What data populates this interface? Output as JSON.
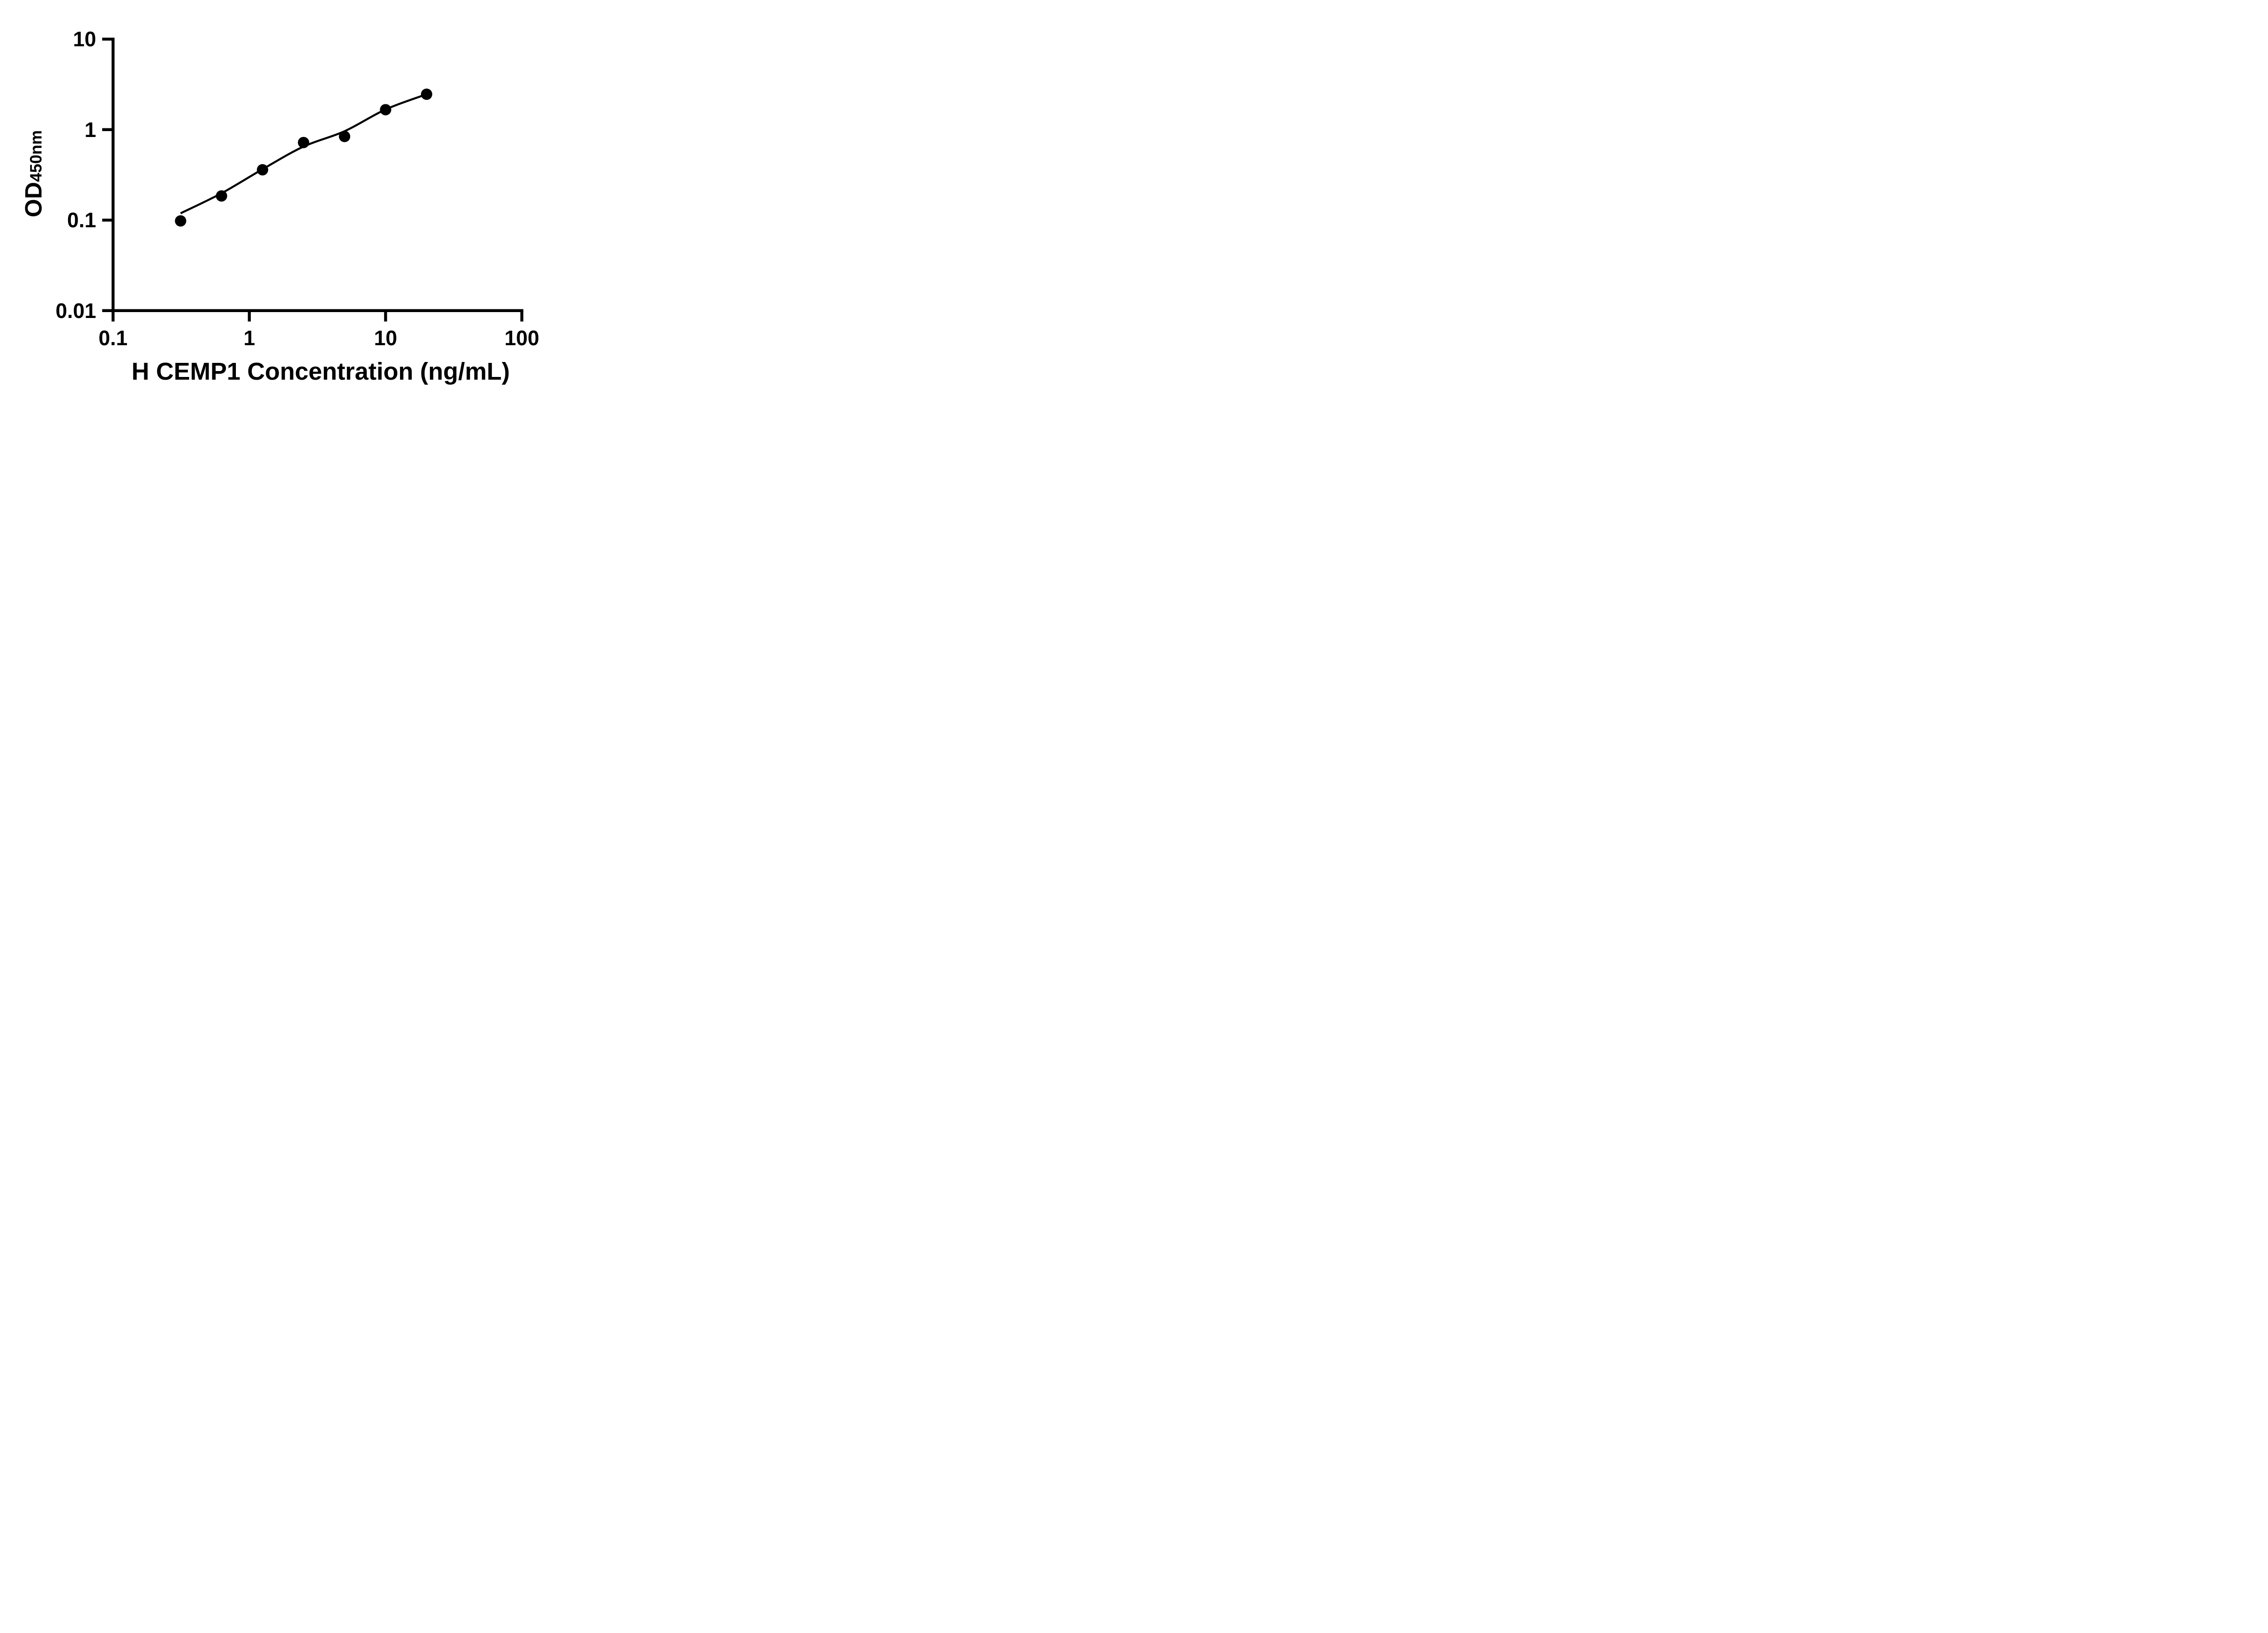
{
  "figure": {
    "background": "#ffffff",
    "ink_color": "#000000"
  },
  "chart_data": {
    "type": "scatter",
    "title": "",
    "xlabel": "H CEMP1 Concentration (ng/mL)",
    "ylabel_main": "OD",
    "ylabel_sub": "450nm",
    "x_scale": "log10",
    "y_scale": "log10",
    "xlim": [
      0.1,
      100
    ],
    "ylim": [
      0.01,
      10
    ],
    "grid": false,
    "legend": "none",
    "x_ticks": [
      {
        "value": 0.1,
        "label": "0.1"
      },
      {
        "value": 1,
        "label": "1"
      },
      {
        "value": 10,
        "label": "10"
      },
      {
        "value": 100,
        "label": "100"
      }
    ],
    "y_ticks": [
      {
        "value": 10,
        "label": "10"
      },
      {
        "value": 1,
        "label": "1"
      },
      {
        "value": 0.1,
        "label": "0.1"
      },
      {
        "value": 0.01,
        "label": "0.01"
      }
    ],
    "series": [
      {
        "name": "standard-points",
        "type": "scatter",
        "marker": "filled-circle",
        "color": "#000000",
        "x": [
          0.313,
          0.625,
          1.25,
          2.5,
          5,
          10,
          20
        ],
        "y": [
          0.098,
          0.185,
          0.36,
          0.72,
          0.84,
          1.66,
          2.46
        ]
      },
      {
        "name": "fit-curve",
        "type": "line",
        "color": "#000000",
        "x": [
          0.313,
          0.625,
          1.25,
          2.5,
          5,
          10,
          20
        ],
        "y": [
          0.119,
          0.198,
          0.365,
          0.65,
          0.96,
          1.67,
          2.46
        ]
      }
    ]
  }
}
